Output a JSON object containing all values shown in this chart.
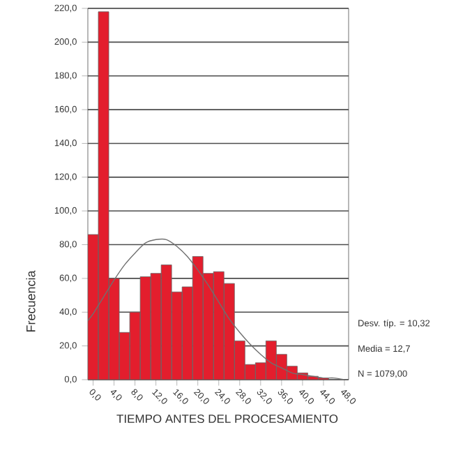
{
  "chart_data": {
    "type": "histogram",
    "xlabel": "TIEMPO ANTES DEL PROCESAMIENTO",
    "ylabel": "Frecuencia",
    "annotations": [
      "Desv. típ. = 10,32",
      "Media = 12,7",
      "N = 1079,00"
    ],
    "series": [
      {
        "color": "#e31e2d",
        "bins": [
          -1,
          1,
          3,
          5,
          7,
          9,
          11,
          13,
          15,
          17,
          19,
          21,
          23,
          25,
          27,
          29,
          31,
          33,
          35,
          37,
          39,
          41,
          43,
          45
        ],
        "values": [
          86,
          218,
          60,
          28,
          40,
          61,
          63,
          68,
          52,
          55,
          73,
          63,
          64,
          57,
          23,
          9,
          10,
          23,
          15,
          8,
          4,
          2,
          1
        ]
      },
      {
        "type": "line",
        "color": "#707070",
        "marker": "none",
        "x": [
          -1,
          0,
          2,
          4,
          6,
          8,
          10,
          12,
          14,
          16,
          18,
          20,
          22,
          24,
          26,
          28,
          30,
          32,
          34,
          36,
          38,
          40,
          42,
          44,
          46,
          48
        ],
        "values": [
          35,
          39,
          49,
          59,
          68,
          75,
          81,
          83,
          83,
          79,
          73,
          65,
          56,
          46,
          36,
          28,
          21,
          15,
          10,
          7,
          4,
          3,
          2,
          1,
          1,
          0
        ]
      }
    ],
    "xlim": [
      -1,
      48.8
    ],
    "ylim": [
      0,
      220
    ],
    "xticks": [
      {
        "value": 0,
        "label": "0,0"
      },
      {
        "value": 4,
        "label": "4,0"
      },
      {
        "value": 8,
        "label": "8,0"
      },
      {
        "value": 12,
        "label": "12,0"
      },
      {
        "value": 16,
        "label": "16,0"
      },
      {
        "value": 20,
        "label": "20,0"
      },
      {
        "value": 24,
        "label": "24,0"
      },
      {
        "value": 28,
        "label": "28,0"
      },
      {
        "value": 32,
        "label": "32,0"
      },
      {
        "value": 36,
        "label": "36,0"
      },
      {
        "value": 40,
        "label": "40,0"
      },
      {
        "value": 44,
        "label": "44,0"
      },
      {
        "value": 48,
        "label": "48,0"
      }
    ],
    "yticks": [
      {
        "value": 0,
        "label": "0,0"
      },
      {
        "value": 20,
        "label": "20,0"
      },
      {
        "value": 40,
        "label": "40,0"
      },
      {
        "value": 60,
        "label": "60,0"
      },
      {
        "value": 80,
        "label": "80,0"
      },
      {
        "value": 100,
        "label": "100,0"
      },
      {
        "value": 120,
        "label": "120,0"
      },
      {
        "value": 140,
        "label": "140,0"
      },
      {
        "value": 160,
        "label": "160,0"
      },
      {
        "value": 180,
        "label": "180,0"
      },
      {
        "value": 200,
        "label": "200,0"
      },
      {
        "value": 220,
        "label": "220,0"
      }
    ],
    "grid": "y"
  }
}
